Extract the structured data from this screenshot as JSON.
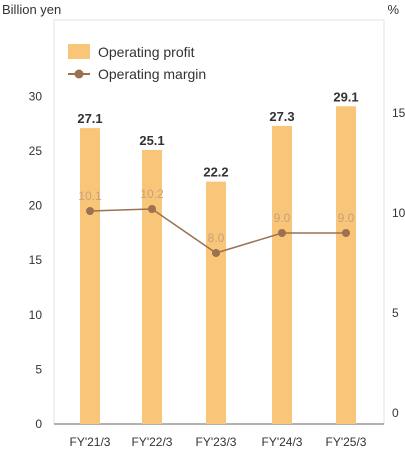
{
  "chart_data": {
    "type": "bar",
    "categories": [
      "FY'21/3",
      "FY'22/3",
      "FY'23/3",
      "FY'24/3",
      "FY'25/3"
    ],
    "series": [
      {
        "name": "Operating profit",
        "type": "bar",
        "axis": "left",
        "values": [
          27.1,
          25.1,
          22.2,
          27.3,
          29.1
        ],
        "labels": [
          "27.1",
          "25.1",
          "22.2",
          "27.3",
          "29.1"
        ]
      },
      {
        "name": "Operating margin",
        "type": "line",
        "axis": "right",
        "values": [
          10.1,
          10.2,
          8.0,
          9.0,
          9.0
        ],
        "labels": [
          "10.1",
          "10.2",
          "8.0",
          "9.0",
          "9.0"
        ]
      }
    ],
    "left_axis": {
      "unit_label": "Billion yen",
      "ticks": [
        "0",
        "5",
        "10",
        "15",
        "20",
        "25",
        "30"
      ],
      "ylim": [
        0,
        37
      ]
    },
    "right_axis": {
      "unit_label": "%",
      "ticks": [
        "0",
        "5",
        "10",
        "15"
      ],
      "ylim": [
        -0.55,
        19.65
      ]
    },
    "grid": false,
    "legend_position": "top-left",
    "colors": {
      "bar": "#F9C679",
      "line": "#9B7150",
      "panel_border": "#E3E3E3",
      "margin_label": "#C8A07A"
    }
  }
}
